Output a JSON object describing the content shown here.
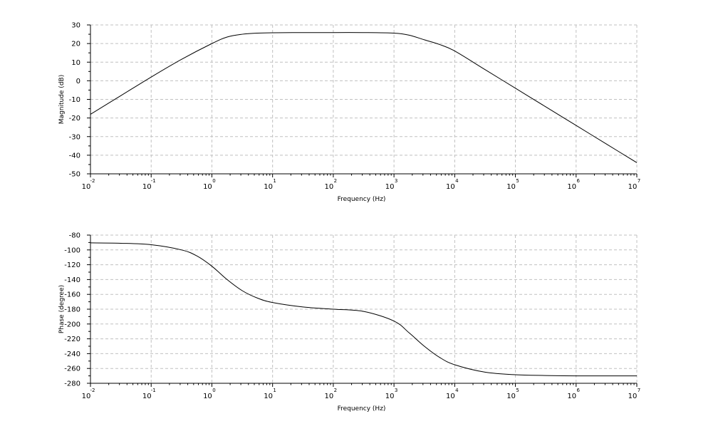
{
  "colors": {
    "background": "#ffffff",
    "axis": "#000000",
    "grid": "#c0c0c0",
    "curve": "#000000"
  },
  "chart_data": [
    {
      "type": "line",
      "xscale": "log",
      "xlim": [
        0.01,
        10000000
      ],
      "ylim": [
        -50,
        30
      ],
      "grid": true,
      "xlabel": "Frequency (Hz)",
      "ylabel": "Magnitude (dB)",
      "x_tick_base": "10",
      "x_tick_exponents": [
        "-2",
        "-1",
        "0",
        "1",
        "2",
        "3",
        "4",
        "5",
        "6",
        "7"
      ],
      "y_ticks": [
        30,
        20,
        10,
        0,
        -10,
        -20,
        -30,
        -40,
        -50
      ],
      "series": [
        {
          "x": [
            0.01,
            0.0316,
            0.1,
            0.316,
            1,
            1.78,
            3.16,
            5.62,
            10,
            31.6,
            100,
            316,
            1000,
            1780,
            3160,
            5620,
            10000,
            31600,
            100000,
            316000,
            1000000,
            3160000,
            10000000
          ],
          "values": [
            -18,
            -8,
            2,
            11.5,
            20,
            23.5,
            25,
            25.6,
            25.8,
            25.9,
            25.9,
            25.9,
            25.6,
            24.5,
            22,
            19.5,
            16,
            6,
            -4,
            -14,
            -24,
            -34,
            -44
          ]
        }
      ]
    },
    {
      "type": "line",
      "xscale": "log",
      "xlim": [
        0.01,
        10000000
      ],
      "ylim": [
        -280,
        -80
      ],
      "grid": true,
      "xlabel": "Frequency (Hz)",
      "ylabel": "Phase (degree)",
      "x_tick_base": "10",
      "x_tick_exponents": [
        "-2",
        "-1",
        "0",
        "1",
        "2",
        "3",
        "4",
        "5",
        "6",
        "7"
      ],
      "y_ticks": [
        -80,
        -100,
        -120,
        -140,
        -160,
        -180,
        -200,
        -220,
        -240,
        -260,
        -280
      ],
      "series": [
        {
          "x": [
            0.01,
            0.0316,
            0.1,
            0.316,
            0.562,
            1,
            1.78,
            3.16,
            5.62,
            10,
            31.6,
            100,
            316,
            1000,
            1780,
            3160,
            5620,
            10000,
            31600,
            100000,
            316000,
            1000000,
            3160000,
            10000000
          ],
          "values": [
            -90.5,
            -91,
            -93,
            -100,
            -108,
            -122,
            -140,
            -155,
            -165,
            -171,
            -177,
            -180,
            -183,
            -196,
            -212,
            -230,
            -245,
            -255,
            -265,
            -268.5,
            -269.5,
            -270,
            -270,
            -270
          ]
        }
      ]
    }
  ]
}
